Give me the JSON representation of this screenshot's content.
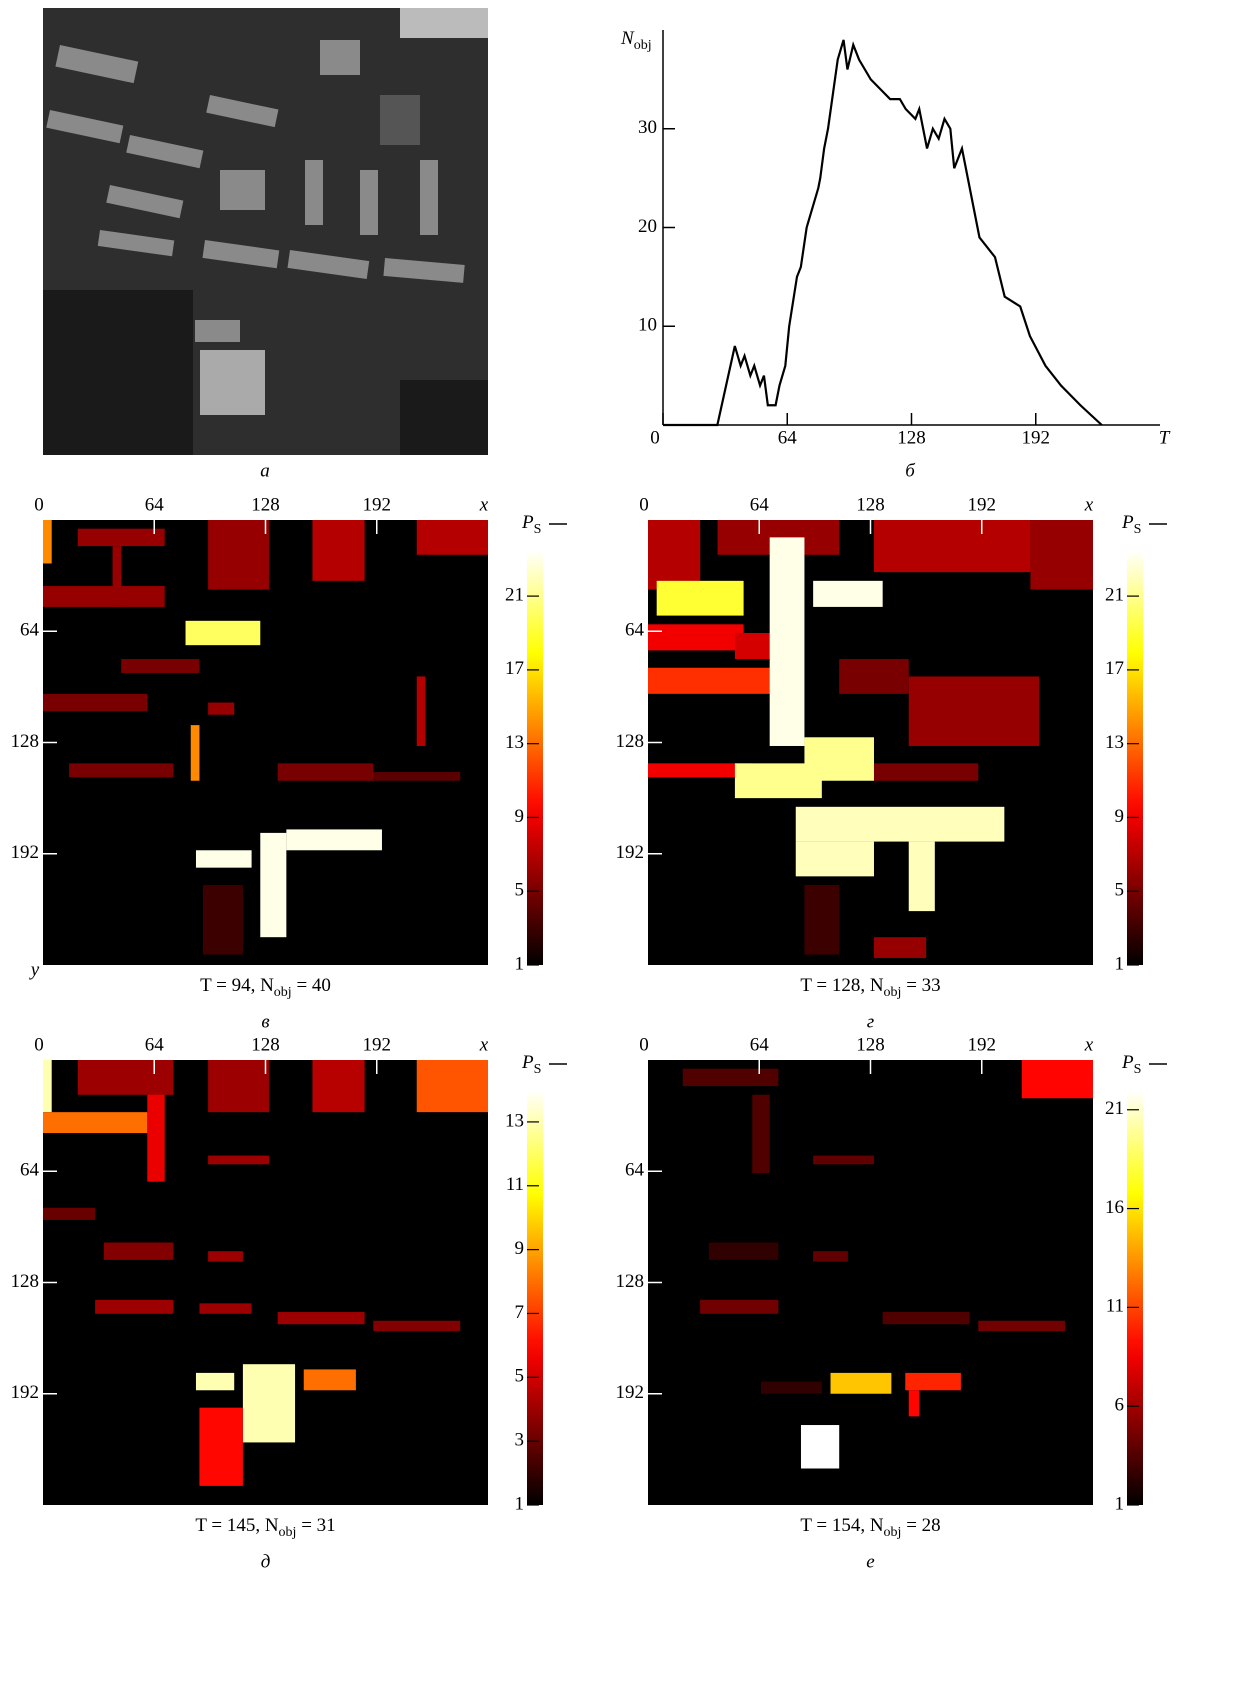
{
  "chart_data": [
    {
      "type": "image",
      "caption": "а"
    },
    {
      "type": "line",
      "caption": "б",
      "x_label": "T",
      "y_label": {
        "main": "N",
        "sub": "obj"
      },
      "xlim": [
        0,
        256
      ],
      "ylim": [
        0,
        40
      ],
      "xticks": [
        0,
        64,
        128,
        192
      ],
      "yticks": [
        10,
        20,
        30
      ],
      "color": "#000000",
      "x": [
        0,
        28,
        37,
        40,
        42,
        45,
        47,
        50,
        52,
        54,
        58,
        60,
        63,
        65,
        69,
        71,
        74,
        80,
        81,
        83,
        85,
        90,
        93,
        95,
        98,
        101,
        107,
        112,
        117,
        122,
        125,
        130,
        132,
        136,
        139,
        142,
        145,
        148,
        150,
        154,
        157,
        160,
        163,
        171,
        176,
        184,
        189,
        197,
        205,
        215,
        226
      ],
      "values": [
        0,
        0,
        8,
        6,
        7,
        5,
        6,
        4,
        5,
        2,
        2,
        4,
        6,
        10,
        15,
        16,
        20,
        24,
        25,
        28,
        30,
        37,
        39,
        36,
        38.5,
        37,
        35,
        34,
        33,
        33,
        32,
        31,
        32,
        28,
        30,
        29,
        31,
        30,
        26,
        28,
        25,
        22,
        19,
        17,
        13,
        12,
        9,
        6,
        4,
        2,
        0
      ]
    },
    {
      "type": "heatmap",
      "caption": "в",
      "x_label": "x",
      "y_label": "y",
      "colorbar_label": {
        "main": "P",
        "sub": "S"
      },
      "annotation": {
        "main": "T = 94,  N",
        "sub": "obj",
        "tail": " = 40"
      },
      "colormap": "hot",
      "xlim": [
        0,
        256
      ],
      "ylim": [
        0,
        256
      ],
      "xticks": [
        0,
        64,
        128,
        192
      ],
      "yticks": [
        64,
        128,
        192
      ],
      "clim": [
        1,
        23.5
      ],
      "cticks": [
        1,
        5,
        9,
        13,
        17,
        21
      ],
      "regions": [
        {
          "x": [
            0,
            5
          ],
          "y": [
            0,
            25
          ],
          "value": 14
        },
        {
          "x": [
            20,
            70
          ],
          "y": [
            5,
            15
          ],
          "value": 6
        },
        {
          "x": [
            0,
            70
          ],
          "y": [
            38,
            50
          ],
          "value": 6
        },
        {
          "x": [
            40,
            45
          ],
          "y": [
            15,
            50
          ],
          "value": 6
        },
        {
          "x": [
            95,
            130
          ],
          "y": [
            0,
            40
          ],
          "value": 6
        },
        {
          "x": [
            155,
            185
          ],
          "y": [
            0,
            35
          ],
          "value": 7
        },
        {
          "x": [
            215,
            256
          ],
          "y": [
            0,
            20
          ],
          "value": 7
        },
        {
          "x": [
            82,
            125
          ],
          "y": [
            58,
            72
          ],
          "value": 20
        },
        {
          "x": [
            45,
            90
          ],
          "y": [
            80,
            88
          ],
          "value": 5
        },
        {
          "x": [
            0,
            60
          ],
          "y": [
            100,
            110
          ],
          "value": 5
        },
        {
          "x": [
            95,
            110
          ],
          "y": [
            105,
            112
          ],
          "value": 6
        },
        {
          "x": [
            85,
            90
          ],
          "y": [
            118,
            150
          ],
          "value": 14
        },
        {
          "x": [
            15,
            75
          ],
          "y": [
            140,
            148
          ],
          "value": 5
        },
        {
          "x": [
            135,
            190
          ],
          "y": [
            140,
            150
          ],
          "value": 5
        },
        {
          "x": [
            190,
            240
          ],
          "y": [
            145,
            150
          ],
          "value": 4
        },
        {
          "x": [
            215,
            220
          ],
          "y": [
            90,
            130
          ],
          "value": 7
        },
        {
          "x": [
            88,
            120
          ],
          "y": [
            190,
            200
          ],
          "value": 23
        },
        {
          "x": [
            125,
            140
          ],
          "y": [
            180,
            240
          ],
          "value": 23
        },
        {
          "x": [
            140,
            195
          ],
          "y": [
            178,
            190
          ],
          "value": 23
        },
        {
          "x": [
            92,
            115
          ],
          "y": [
            210,
            250
          ],
          "value": 3
        }
      ]
    },
    {
      "type": "heatmap",
      "caption": "г",
      "x_label": "x",
      "colorbar_label": {
        "main": "P",
        "sub": "S"
      },
      "annotation": {
        "main": "T = 128,  N",
        "sub": "obj",
        "tail": " = 33"
      },
      "colormap": "hot",
      "xlim": [
        0,
        256
      ],
      "ylim": [
        0,
        256
      ],
      "xticks": [
        0,
        64,
        128,
        192
      ],
      "yticks": [
        64,
        128,
        192
      ],
      "clim": [
        1,
        23.5
      ],
      "cticks": [
        1,
        5,
        9,
        13,
        17,
        21
      ],
      "regions": [
        {
          "x": [
            0,
            30
          ],
          "y": [
            0,
            40
          ],
          "value": 7
        },
        {
          "x": [
            40,
            110
          ],
          "y": [
            0,
            20
          ],
          "value": 6
        },
        {
          "x": [
            130,
            220
          ],
          "y": [
            0,
            30
          ],
          "value": 7
        },
        {
          "x": [
            220,
            256
          ],
          "y": [
            0,
            40
          ],
          "value": 6
        },
        {
          "x": [
            5,
            55
          ],
          "y": [
            35,
            55
          ],
          "value": 19
        },
        {
          "x": [
            0,
            55
          ],
          "y": [
            60,
            75
          ],
          "value": 9
        },
        {
          "x": [
            0,
            80
          ],
          "y": [
            85,
            100
          ],
          "value": 11
        },
        {
          "x": [
            50,
            80
          ],
          "y": [
            65,
            80
          ],
          "value": 8
        },
        {
          "x": [
            110,
            150
          ],
          "y": [
            80,
            100
          ],
          "value": 5
        },
        {
          "x": [
            150,
            225
          ],
          "y": [
            90,
            130
          ],
          "value": 6
        },
        {
          "x": [
            0,
            60
          ],
          "y": [
            140,
            148
          ],
          "value": 9
        },
        {
          "x": [
            130,
            190
          ],
          "y": [
            140,
            150
          ],
          "value": 5
        },
        {
          "x": [
            70,
            90
          ],
          "y": [
            10,
            130
          ],
          "value": 23
        },
        {
          "x": [
            95,
            135
          ],
          "y": [
            35,
            50
          ],
          "value": 23
        },
        {
          "x": [
            50,
            100
          ],
          "y": [
            140,
            160
          ],
          "value": 21
        },
        {
          "x": [
            90,
            130
          ],
          "y": [
            125,
            150
          ],
          "value": 21
        },
        {
          "x": [
            85,
            205
          ],
          "y": [
            165,
            185
          ],
          "value": 22
        },
        {
          "x": [
            85,
            130
          ],
          "y": [
            185,
            205
          ],
          "value": 22
        },
        {
          "x": [
            150,
            165
          ],
          "y": [
            185,
            225
          ],
          "value": 22
        },
        {
          "x": [
            90,
            110
          ],
          "y": [
            210,
            250
          ],
          "value": 3
        },
        {
          "x": [
            130,
            160
          ],
          "y": [
            240,
            252
          ],
          "value": 6
        }
      ]
    },
    {
      "type": "heatmap",
      "caption": "д",
      "x_label": "x",
      "colorbar_label": {
        "main": "P",
        "sub": "S"
      },
      "annotation": {
        "main": "T = 145,  N",
        "sub": "obj",
        "tail": " = 31"
      },
      "colormap": "hot",
      "xlim": [
        0,
        256
      ],
      "ylim": [
        0,
        256
      ],
      "xticks": [
        0,
        64,
        128,
        192
      ],
      "yticks": [
        64,
        128,
        192
      ],
      "clim": [
        1,
        14
      ],
      "cticks": [
        1,
        3,
        5,
        7,
        9,
        11,
        13
      ],
      "regions": [
        {
          "x": [
            0,
            5
          ],
          "y": [
            0,
            30
          ],
          "value": 13
        },
        {
          "x": [
            0,
            60
          ],
          "y": [
            30,
            42
          ],
          "value": 8
        },
        {
          "x": [
            60,
            70
          ],
          "y": [
            15,
            70
          ],
          "value": 5.5
        },
        {
          "x": [
            20,
            75
          ],
          "y": [
            0,
            20
          ],
          "value": 4
        },
        {
          "x": [
            95,
            130
          ],
          "y": [
            0,
            30
          ],
          "value": 4
        },
        {
          "x": [
            155,
            185
          ],
          "y": [
            0,
            30
          ],
          "value": 4.5
        },
        {
          "x": [
            215,
            256
          ],
          "y": [
            0,
            30
          ],
          "value": 7.5
        },
        {
          "x": [
            95,
            130
          ],
          "y": [
            55,
            60
          ],
          "value": 4
        },
        {
          "x": [
            0,
            30
          ],
          "y": [
            85,
            92
          ],
          "value": 3
        },
        {
          "x": [
            35,
            75
          ],
          "y": [
            105,
            115
          ],
          "value": 3.5
        },
        {
          "x": [
            95,
            115
          ],
          "y": [
            110,
            116
          ],
          "value": 4
        },
        {
          "x": [
            30,
            75
          ],
          "y": [
            138,
            146
          ],
          "value": 4
        },
        {
          "x": [
            90,
            120
          ],
          "y": [
            140,
            146
          ],
          "value": 4
        },
        {
          "x": [
            135,
            185
          ],
          "y": [
            145,
            152
          ],
          "value": 4
        },
        {
          "x": [
            190,
            240
          ],
          "y": [
            150,
            156
          ],
          "value": 3.5
        },
        {
          "x": [
            88,
            110
          ],
          "y": [
            180,
            190
          ],
          "value": 13
        },
        {
          "x": [
            115,
            145
          ],
          "y": [
            175,
            220
          ],
          "value": 13
        },
        {
          "x": [
            150,
            180
          ],
          "y": [
            178,
            190
          ],
          "value": 8
        },
        {
          "x": [
            90,
            115
          ],
          "y": [
            200,
            245
          ],
          "value": 6
        }
      ]
    },
    {
      "type": "heatmap",
      "caption": "е",
      "x_label": "x",
      "colorbar_label": {
        "main": "P",
        "sub": "S"
      },
      "annotation": {
        "main": "T = 154,  N",
        "sub": "obj",
        "tail": " = 28"
      },
      "colormap": "hot",
      "xlim": [
        0,
        256
      ],
      "ylim": [
        0,
        256
      ],
      "xticks": [
        0,
        64,
        128,
        192
      ],
      "yticks": [
        64,
        128,
        192
      ],
      "clim": [
        1,
        22
      ],
      "cticks": [
        1,
        6,
        11,
        16,
        21
      ],
      "regions": [
        {
          "x": [
            215,
            256
          ],
          "y": [
            0,
            22
          ],
          "value": 9
        },
        {
          "x": [
            20,
            75
          ],
          "y": [
            5,
            15
          ],
          "value": 3.5
        },
        {
          "x": [
            60,
            70
          ],
          "y": [
            20,
            65
          ],
          "value": 3.5
        },
        {
          "x": [
            95,
            130
          ],
          "y": [
            55,
            60
          ],
          "value": 4
        },
        {
          "x": [
            35,
            75
          ],
          "y": [
            105,
            115
          ],
          "value": 2.5
        },
        {
          "x": [
            95,
            115
          ],
          "y": [
            110,
            116
          ],
          "value": 4
        },
        {
          "x": [
            30,
            75
          ],
          "y": [
            138,
            146
          ],
          "value": 4.5
        },
        {
          "x": [
            135,
            185
          ],
          "y": [
            145,
            152
          ],
          "value": 3.5
        },
        {
          "x": [
            190,
            240
          ],
          "y": [
            150,
            156
          ],
          "value": 4.5
        },
        {
          "x": [
            105,
            140
          ],
          "y": [
            180,
            192
          ],
          "value": 15
        },
        {
          "x": [
            148,
            180
          ],
          "y": [
            180,
            190
          ],
          "value": 10
        },
        {
          "x": [
            150,
            156
          ],
          "y": [
            190,
            205
          ],
          "value": 9
        },
        {
          "x": [
            88,
            110
          ],
          "y": [
            210,
            235
          ],
          "value": 22
        },
        {
          "x": [
            65,
            100
          ],
          "y": [
            185,
            192
          ],
          "value": 2.5
        }
      ]
    }
  ]
}
